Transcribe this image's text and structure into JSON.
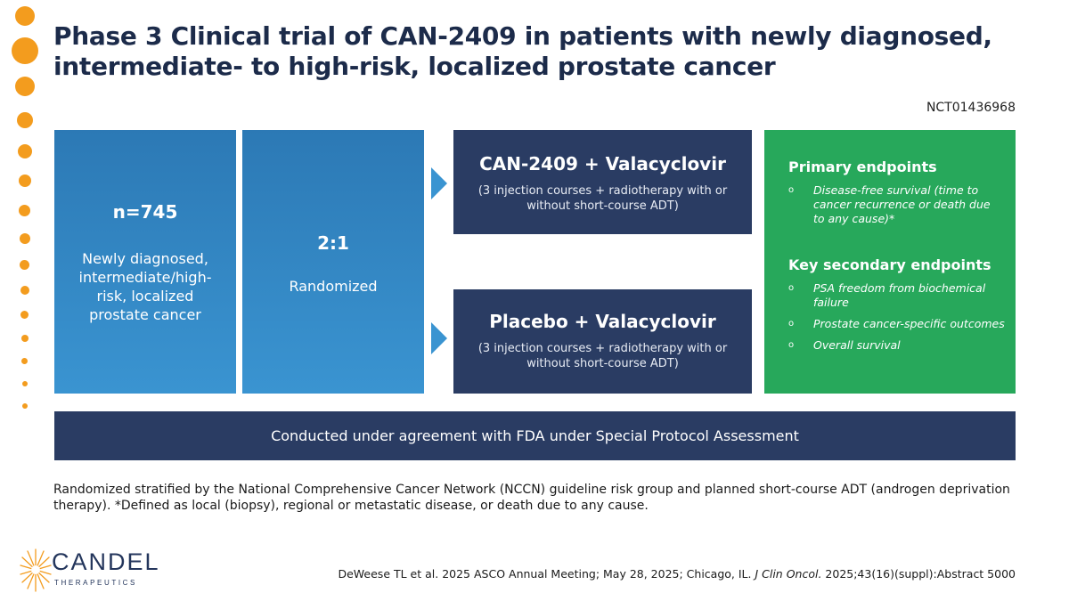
{
  "title": "Phase 3 Clinical trial of CAN-2409 in patients with newly diagnosed, intermediate- to high-risk, localized prostate cancer",
  "trial_id": "NCT01436968",
  "enrollment": {
    "count": "n=745",
    "description": "Newly diagnosed, intermediate/high-risk, localized prostate cancer"
  },
  "randomization": {
    "ratio": "2:1",
    "label": "Randomized"
  },
  "arms": [
    {
      "title": "CAN-2409 + Valacyclovir",
      "description": "(3 injection courses + radiotherapy with or without short-course ADT)"
    },
    {
      "title": "Placebo + Valacyclovir",
      "description": "(3 injection courses + radiotherapy with or without short-course ADT)"
    }
  ],
  "endpoints": {
    "primary_heading": "Primary endpoints",
    "primary": [
      "Disease-free survival (time to cancer recurrence or death due to any cause)*"
    ],
    "secondary_heading": "Key secondary endpoints",
    "secondary": [
      "PSA freedom from biochemical failure",
      "Prostate cancer-specific outcomes",
      "Overall survival"
    ],
    "bullet": "o"
  },
  "fda_note": "Conducted under agreement with FDA under Special Protocol Assessment",
  "footnote": "Randomized stratified by the National Comprehensive Cancer Network (NCCN) guideline risk group and planned short-course ADT (androgen deprivation therapy). *Defined as local (biopsy), regional or metastatic disease, or death due to any cause.",
  "logo": {
    "name": "CANDEL",
    "subtitle": "THERAPEUTICS"
  },
  "citation": {
    "prefix": "DeWeese TL et al. 2025 ASCO Annual Meeting; May 28, 2025; Chicago, IL. ",
    "journal": "J Clin Oncol.",
    "suffix": " 2025;43(16)(suppl):Abstract 5000"
  },
  "colors": {
    "accent_orange": "#f39c1e",
    "navy": "#2a3c63",
    "blue": "#3a94d1",
    "green": "#27a85b"
  }
}
